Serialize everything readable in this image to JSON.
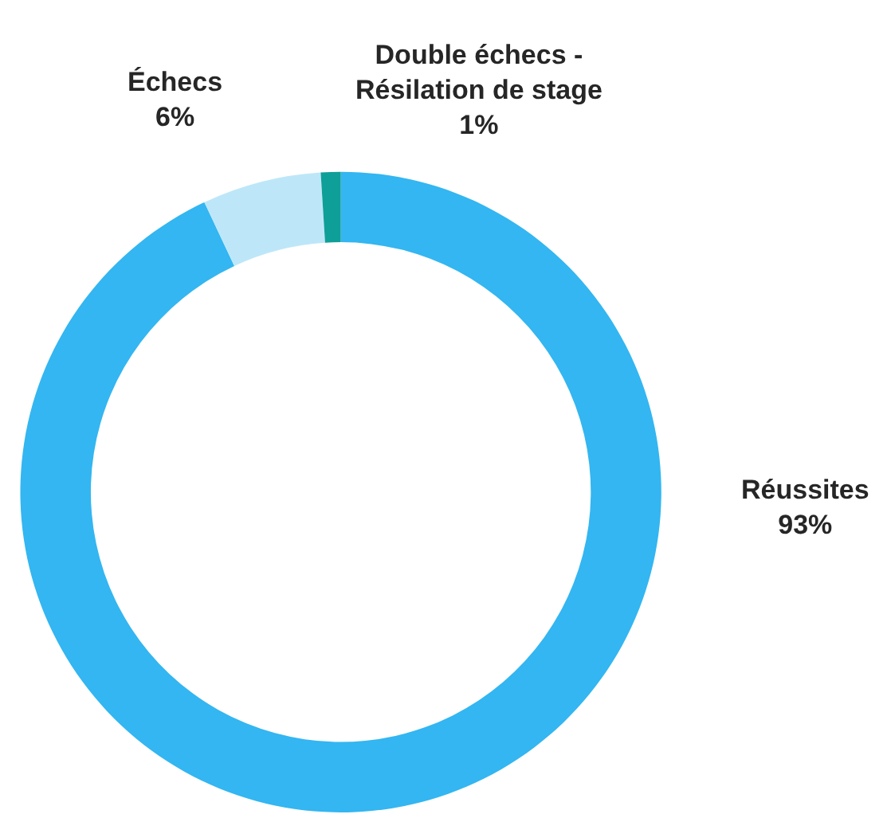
{
  "chart_data": {
    "type": "donut",
    "categories": [
      "Réussites",
      "Échecs",
      "Double échecs - Résilation de stage"
    ],
    "values": [
      93,
      6,
      1
    ],
    "value_labels": [
      "93%",
      "6%",
      "1%"
    ],
    "colors": [
      "#33b6f1",
      "#bde7f9",
      "#0e9f98"
    ],
    "legend": false
  }
}
